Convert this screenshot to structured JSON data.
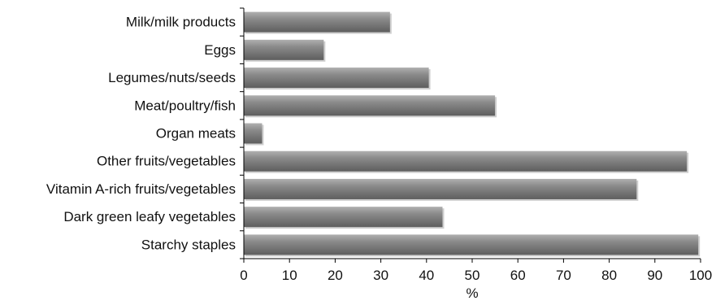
{
  "chart_data": {
    "type": "bar",
    "orientation": "horizontal",
    "categories": [
      "Milk/milk products",
      "Eggs",
      "Legumes/nuts/seeds",
      "Meat/poultry/fish",
      "Organ meats",
      "Other fruits/vegetables",
      "Vitamin A-rich fruits/vegetables",
      "Dark green leafy vegetables",
      "Starchy staples"
    ],
    "values": [
      32,
      17.5,
      40.5,
      55,
      4,
      97,
      86,
      43.5,
      99.5
    ],
    "xlabel": "%",
    "ylabel": "",
    "xlim": [
      0,
      100
    ],
    "xticks": [
      "0",
      "10",
      "20",
      "30",
      "40",
      "50",
      "60",
      "70",
      "80",
      "90",
      "100"
    ],
    "grid": false,
    "bar_color": "#7a7a7a"
  }
}
